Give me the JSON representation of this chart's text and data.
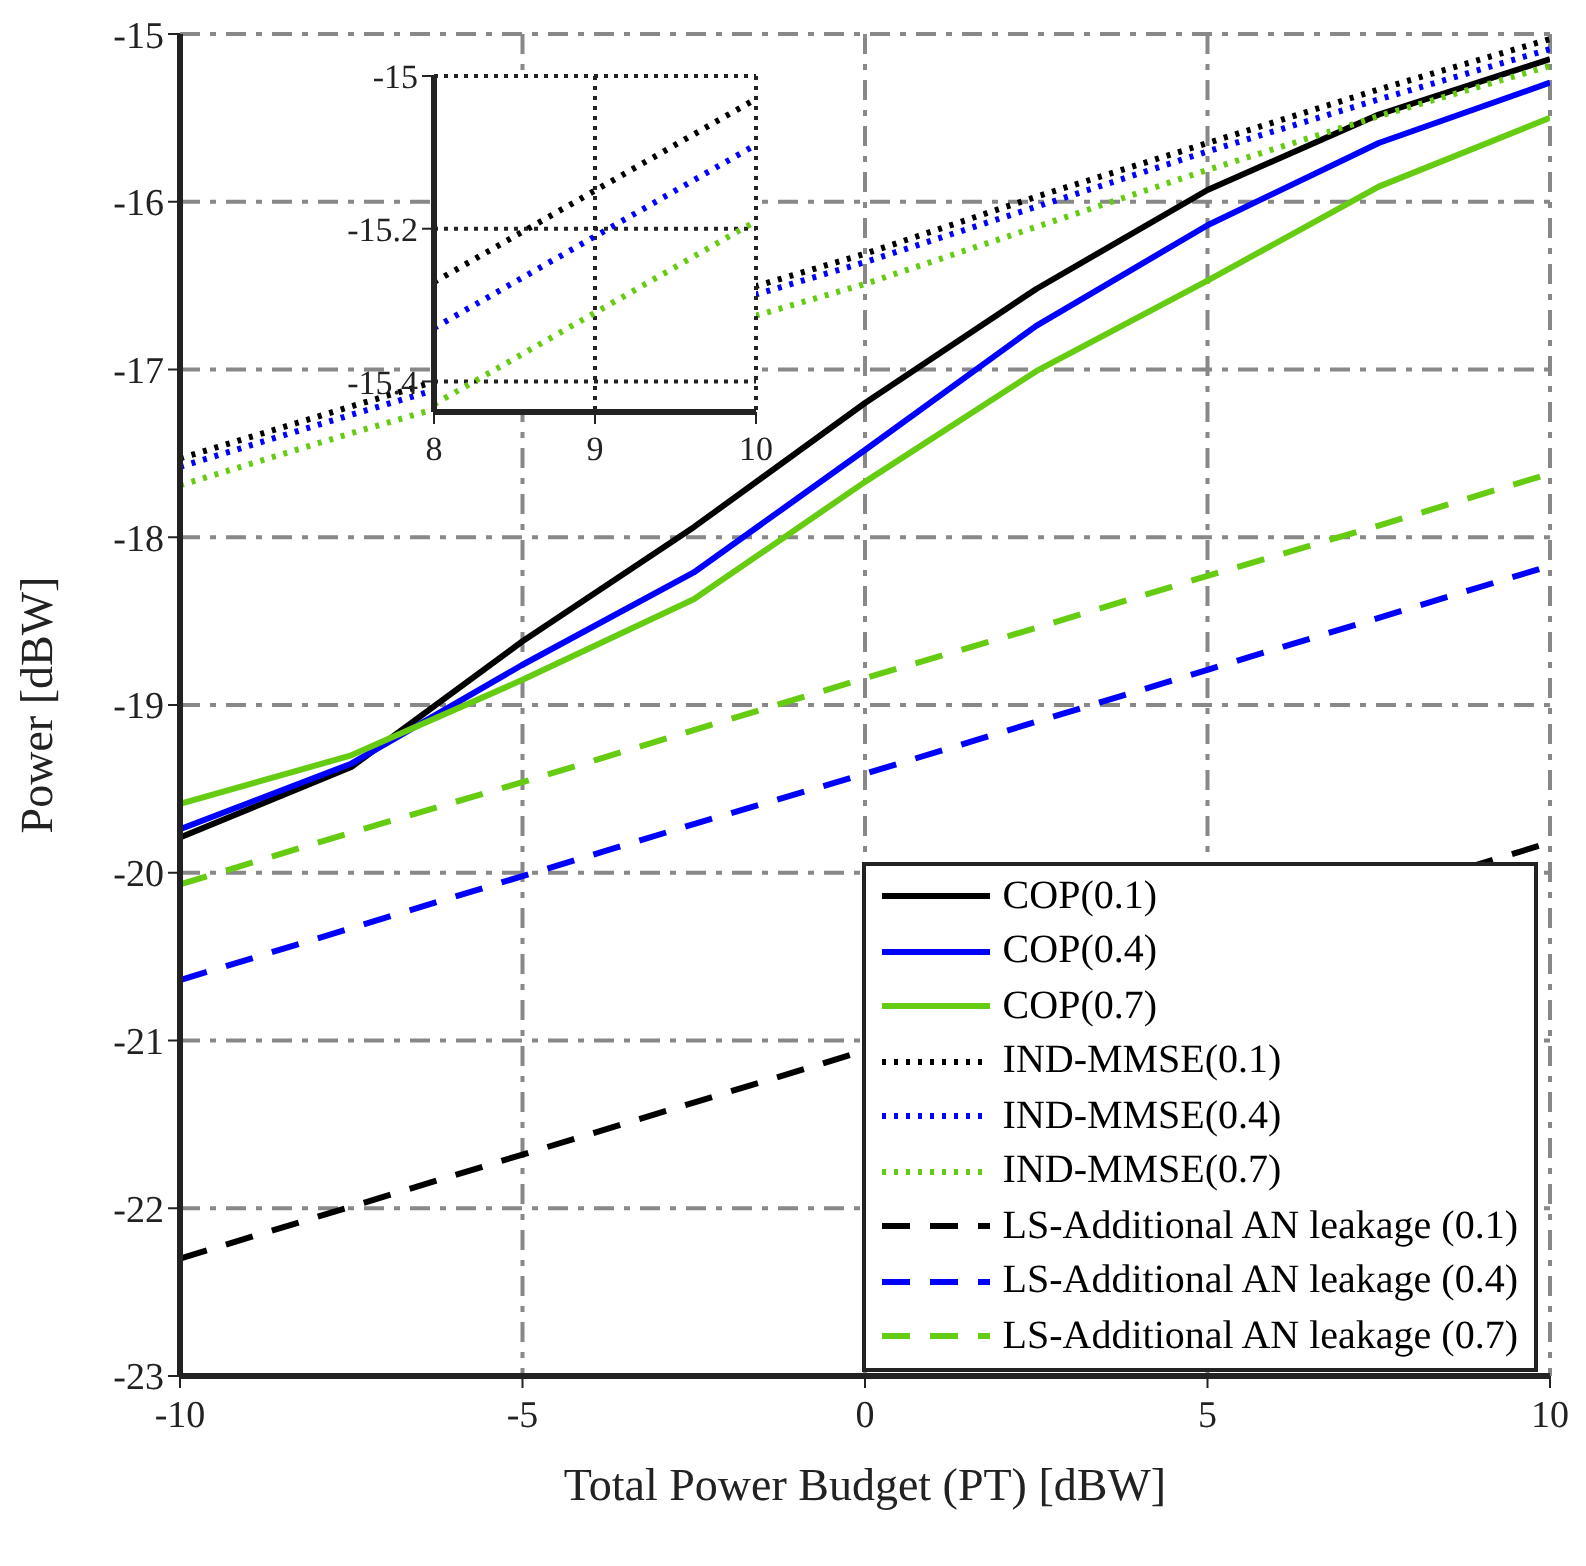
{
  "chart_data": [
    {
      "type": "line",
      "xlabel": "Total Power Budget (PT) [dBW]",
      "ylabel": "Power [dBW]",
      "x": [
        -10,
        -7.5,
        -5,
        -2.5,
        0,
        2.5,
        5,
        7.5,
        10
      ],
      "xlim": [
        -10,
        10
      ],
      "xticks": [
        -10,
        -5,
        0,
        5,
        10
      ],
      "ylim": [
        -23,
        -15
      ],
      "yticks": [
        -23,
        -22,
        -21,
        -20,
        -19,
        -18,
        -17,
        -16,
        -15
      ],
      "grid": true,
      "legend": "bottom right",
      "series": [
        {
          "name": "COP(0.1)",
          "color": "#000000",
          "line_style": "solid",
          "values": [
            -19.79,
            -19.37,
            -18.62,
            -17.94,
            -17.2,
            -16.52,
            -15.93,
            -15.48,
            -15.15
          ]
        },
        {
          "name": "COP(0.4)",
          "color": "#0000ff",
          "line_style": "solid",
          "values": [
            -19.74,
            -19.35,
            -18.76,
            -18.21,
            -17.48,
            -16.74,
            -16.14,
            -15.65,
            -15.29
          ]
        },
        {
          "name": "COP(0.7)",
          "color": "#66cc11",
          "line_style": "solid",
          "values": [
            -19.59,
            -19.3,
            -18.85,
            -18.37,
            -17.67,
            -17.01,
            -16.47,
            -15.91,
            -15.5
          ]
        },
        {
          "name": "IND-MMSE(0.1)",
          "color": "#000000",
          "line_style": "dotted",
          "x": [
            -10,
            -7.5,
            0,
            2.5,
            5,
            7.5,
            10
          ],
          "values": [
            -17.53,
            -17.22,
            -16.31,
            -15.97,
            -15.65,
            -15.33,
            -15.03
          ]
        },
        {
          "name": "IND-MMSE(0.4)",
          "color": "#0000ff",
          "line_style": "dotted",
          "x": [
            -10,
            -7.5,
            0,
            2.5,
            5,
            7.5,
            10
          ],
          "values": [
            -17.58,
            -17.27,
            -16.36,
            -16.03,
            -15.7,
            -15.39,
            -15.09
          ]
        },
        {
          "name": "IND-MMSE(0.7)",
          "color": "#66cc11",
          "line_style": "dotted",
          "x": [
            -10,
            -7.5,
            0,
            2.5,
            5,
            7.5,
            10
          ],
          "values": [
            -17.69,
            -17.38,
            -16.49,
            -16.15,
            -15.81,
            -15.49,
            -15.19
          ]
        },
        {
          "name": "LS-Additional AN leakage (0.1)",
          "color": "#000000",
          "line_style": "dashed",
          "x": [
            -10,
            -7.5,
            -5,
            -2.5,
            10
          ],
          "values": [
            -22.3,
            -21.99,
            -21.68,
            -21.37,
            -19.82
          ]
        },
        {
          "name": "LS-Additional AN leakage (0.4)",
          "color": "#0000ff",
          "line_style": "dashed",
          "values": [
            -20.64,
            -20.33,
            -20.02,
            -19.71,
            -19.41,
            -19.1,
            -18.79,
            -18.48,
            -18.17
          ]
        },
        {
          "name": "LS-Additional AN leakage (0.7)",
          "color": "#66cc11",
          "line_style": "dashed",
          "values": [
            -20.07,
            -19.76,
            -19.46,
            -19.15,
            -18.84,
            -18.54,
            -18.23,
            -17.93,
            -17.62
          ]
        }
      ]
    },
    {
      "type": "line",
      "x": [
        8,
        9,
        10
      ],
      "xlim": [
        8,
        10
      ],
      "xticks": [
        8,
        9,
        10
      ],
      "ylim": [
        -15.44,
        -15
      ],
      "yticks": [
        -15.4,
        -15.2,
        -15
      ],
      "grid": true,
      "series": [
        {
          "color": "#000000",
          "line_style": "dotted",
          "values": [
            -15.27,
            -15.15,
            -15.03
          ]
        },
        {
          "color": "#0000ff",
          "line_style": "dotted",
          "values": [
            -15.33,
            -15.21,
            -15.09
          ]
        },
        {
          "color": "#66cc11",
          "line_style": "dotted",
          "values": [
            -15.43,
            -15.31,
            -15.19
          ]
        }
      ]
    }
  ]
}
